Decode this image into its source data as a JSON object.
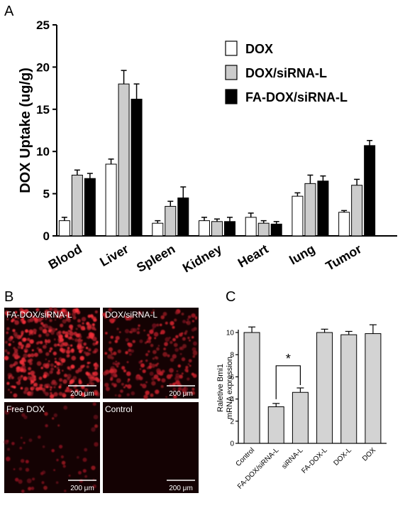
{
  "panels": {
    "a": "A",
    "b": "B",
    "c": "C"
  },
  "chart_data": [
    {
      "type": "bar",
      "panel": "A",
      "categories": [
        "Blood",
        "Liver",
        "Spleen",
        "Kidney",
        "Heart",
        "lung",
        "Tumor"
      ],
      "series": [
        {
          "name": "DOX",
          "color": "#ffffff",
          "values": [
            1.8,
            8.5,
            1.5,
            1.8,
            2.2,
            4.7,
            2.8
          ],
          "errors": [
            0.4,
            0.6,
            0.3,
            0.4,
            0.5,
            0.4,
            0.2
          ]
        },
        {
          "name": "DOX/siRNA-L",
          "color": "#cccccc",
          "values": [
            7.2,
            18.0,
            3.5,
            1.7,
            1.5,
            6.2,
            6.0
          ],
          "errors": [
            0.6,
            1.6,
            0.6,
            0.3,
            0.3,
            1.0,
            0.7
          ]
        },
        {
          "name": "FA-DOX/siRNA-L",
          "color": "#000000",
          "values": [
            6.8,
            16.2,
            4.5,
            1.7,
            1.4,
            6.5,
            10.7
          ],
          "errors": [
            0.6,
            1.8,
            1.3,
            0.5,
            0.3,
            0.6,
            0.6
          ]
        }
      ],
      "ylabel": "DOX Uptake (ug/g)",
      "ylim": [
        0,
        25
      ],
      "yticks": [
        0,
        5,
        10,
        15,
        20,
        25
      ],
      "legend": "top-right",
      "grid": false
    },
    {
      "type": "bar",
      "panel": "C",
      "categories": [
        "Control",
        "FA-DOX/siRNA-L",
        "siRNA-L",
        "FA-DOX-L",
        "DOX-L",
        "DOX"
      ],
      "values": [
        10.0,
        3.3,
        4.6,
        10.0,
        9.8,
        9.9
      ],
      "errors": [
        0.5,
        0.3,
        0.4,
        0.3,
        0.3,
        0.8
      ],
      "color": "#d3d3d3",
      "ylabel_lines": [
        "Raletive Bmi1",
        "mRNA expression"
      ],
      "ylim": [
        0,
        10
      ],
      "yticks": [
        0,
        2,
        4,
        6,
        8,
        10
      ],
      "significance": {
        "from": "FA-DOX/siRNA-L",
        "to": "siRNA-L",
        "label": "*"
      },
      "grid": false
    }
  ],
  "micrographs": [
    {
      "label": "FA-DOX/siRNA-L",
      "scale": "200 μm",
      "intensity": 0.85
    },
    {
      "label": "DOX/siRNA-L",
      "scale": "200 μm",
      "intensity": 0.45
    },
    {
      "label": "Free DOX",
      "scale": "200 μm",
      "intensity": 0.12
    },
    {
      "label": "Control",
      "scale": "200 μm",
      "intensity": 0.0
    }
  ]
}
